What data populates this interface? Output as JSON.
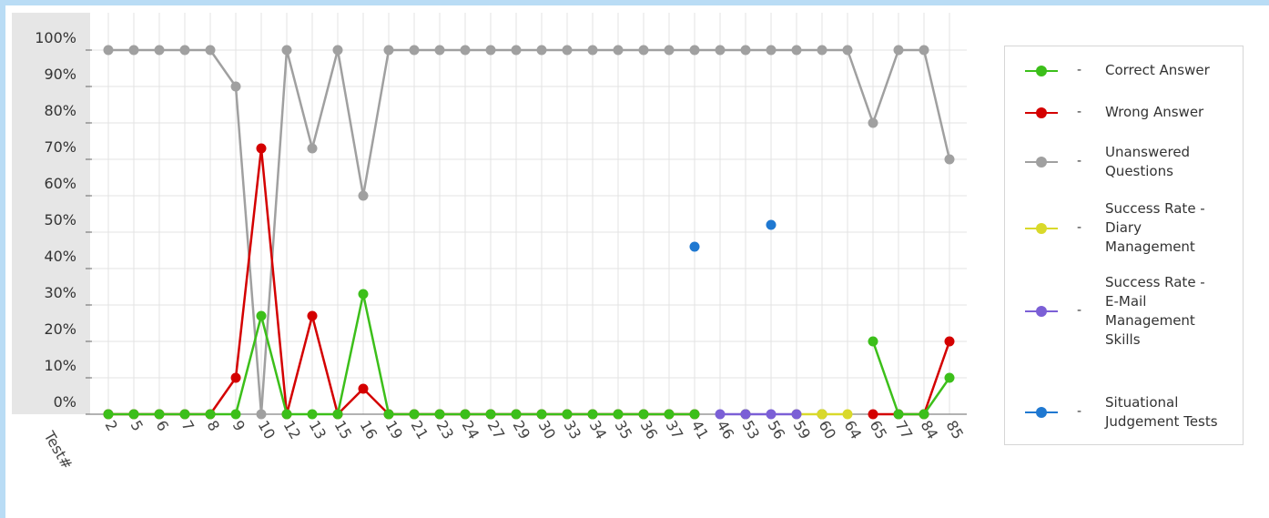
{
  "chart_data": {
    "type": "line",
    "xlabel": "Test#",
    "ylabel": "",
    "ylim": [
      0,
      100
    ],
    "yticks": [
      "100%",
      "90%",
      "80%",
      "70%",
      "60%",
      "50%",
      "40%",
      "30%",
      "20%",
      "10%",
      "0%"
    ],
    "categories": [
      "2",
      "5",
      "6",
      "7",
      "8",
      "9",
      "10",
      "12",
      "13",
      "15",
      "16",
      "19",
      "21",
      "23",
      "24",
      "27",
      "29",
      "30",
      "33",
      "34",
      "35",
      "36",
      "37",
      "41",
      "46",
      "53",
      "56",
      "59",
      "60",
      "64",
      "65",
      "77",
      "84",
      "85"
    ],
    "legend_position": "right",
    "grid": true,
    "series": [
      {
        "name": "Correct Answer",
        "color": "#3cbf1a",
        "values": [
          0,
          0,
          0,
          0,
          0,
          0,
          27,
          0,
          0,
          0,
          33,
          0,
          0,
          0,
          0,
          0,
          0,
          0,
          0,
          0,
          0,
          0,
          0,
          0,
          null,
          0,
          null,
          null,
          0,
          null,
          20,
          0,
          0,
          10
        ]
      },
      {
        "name": "Wrong Answer",
        "color": "#d40000",
        "values": [
          0,
          0,
          0,
          0,
          0,
          10,
          73,
          0,
          27,
          0,
          7,
          0,
          0,
          0,
          0,
          0,
          0,
          0,
          0,
          0,
          0,
          0,
          0,
          0,
          null,
          0,
          null,
          null,
          0,
          null,
          0,
          0,
          0,
          20
        ]
      },
      {
        "name": "Unanswered Questions",
        "color": "#a0a0a0",
        "values": [
          100,
          100,
          100,
          100,
          100,
          90,
          0,
          100,
          73,
          100,
          60,
          100,
          100,
          100,
          100,
          100,
          100,
          100,
          100,
          100,
          100,
          100,
          100,
          100,
          100,
          100,
          100,
          100,
          100,
          100,
          80,
          100,
          100,
          70
        ]
      },
      {
        "name": "Success Rate - Diary Management",
        "color": "#d9d92a",
        "values": [
          null,
          null,
          null,
          null,
          null,
          null,
          null,
          null,
          null,
          null,
          null,
          null,
          null,
          null,
          null,
          null,
          null,
          null,
          null,
          null,
          null,
          null,
          null,
          null,
          null,
          null,
          null,
          0,
          0,
          0,
          null,
          null,
          null,
          null
        ]
      },
      {
        "name": "Success Rate - E-Mail Management Skills",
        "color": "#7b5fd6",
        "values": [
          null,
          null,
          null,
          null,
          null,
          null,
          null,
          null,
          null,
          null,
          null,
          null,
          null,
          null,
          null,
          null,
          null,
          null,
          null,
          null,
          null,
          null,
          null,
          null,
          0,
          0,
          0,
          0,
          null,
          null,
          null,
          null,
          null,
          null
        ]
      },
      {
        "name": "Situational Judgement Tests",
        "color": "#1f78d1",
        "values": [
          null,
          null,
          null,
          null,
          null,
          null,
          null,
          null,
          null,
          null,
          null,
          null,
          null,
          null,
          null,
          null,
          null,
          null,
          null,
          null,
          null,
          null,
          null,
          46,
          null,
          null,
          52,
          null,
          null,
          null,
          null,
          null,
          null,
          null
        ]
      }
    ]
  },
  "legend": {
    "dash": "-",
    "items": [
      {
        "lines": [
          "Correct Answer"
        ]
      },
      {
        "lines": [
          "Wrong Answer"
        ]
      },
      {
        "lines": [
          "Unanswered",
          "Questions"
        ]
      },
      {
        "lines": [
          "Success Rate -",
          "Diary",
          "Management"
        ]
      },
      {
        "lines": [
          "Success Rate -",
          "E-Mail",
          "Management",
          "Skills"
        ]
      },
      {
        "lines": [
          "Situational",
          "Judgement Tests"
        ]
      }
    ]
  }
}
